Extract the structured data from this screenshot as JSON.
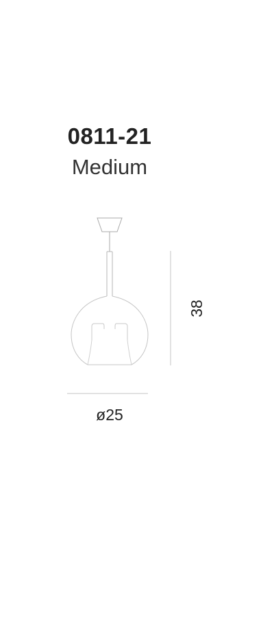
{
  "product": {
    "code": "0811-21",
    "size": "Medium"
  },
  "dimensions": {
    "diameter": "ø25",
    "height": "38"
  },
  "colors": {
    "text": "#222222",
    "line": "#bfbfbf"
  }
}
